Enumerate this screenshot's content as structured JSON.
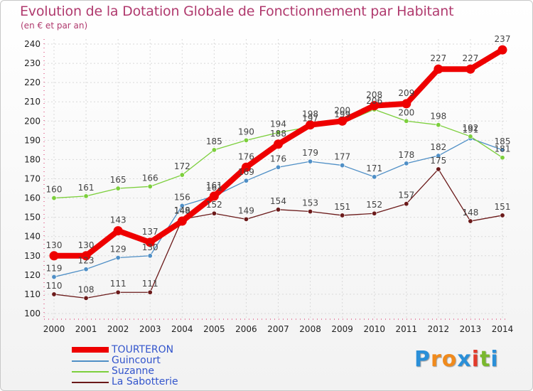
{
  "chart_data": {
    "type": "line",
    "title": "Evolution de la Dotation Globale de Fonctionnement par Habitant",
    "subtitle": "(en € et par an)",
    "xlabel": "",
    "ylabel": "",
    "ylim": [
      100,
      240
    ],
    "y_ticks": [
      100,
      110,
      120,
      130,
      140,
      150,
      160,
      170,
      180,
      190,
      200,
      210,
      220,
      230,
      240
    ],
    "x": [
      "2000",
      "2001",
      "2002",
      "2003",
      "2004",
      "2005",
      "2006",
      "2007",
      "2008",
      "2009",
      "2010",
      "2011",
      "2012",
      "2013",
      "2014"
    ],
    "grid": true,
    "series": [
      {
        "name": "La Sabotterie",
        "color": "#6b1a1a",
        "values": [
          110,
          108,
          111,
          111,
          149,
          152,
          149,
          154,
          153,
          151,
          152,
          157,
          175,
          148,
          151
        ]
      },
      {
        "name": "Guincourt",
        "color": "#4f8fc6",
        "values": [
          119,
          123,
          129,
          130,
          156,
          161,
          169,
          176,
          179,
          177,
          171,
          178,
          182,
          191,
          185
        ]
      },
      {
        "name": "Suzanne",
        "color": "#7ccf3c",
        "values": [
          160,
          161,
          165,
          166,
          172,
          185,
          190,
          194,
          197,
          199,
          206,
          200,
          198,
          192,
          181
        ]
      },
      {
        "name": "TOURTERON",
        "color": "#ee0000",
        "values": [
          130,
          130,
          143,
          137,
          148,
          161,
          176,
          188,
          198,
          200,
          208,
          209,
          227,
          227,
          237
        ]
      }
    ],
    "legend": [
      "TOURTERON",
      "Guincourt",
      "Suzanne",
      "La Sabotterie"
    ],
    "legend_position": "bottom-left"
  },
  "logo": {
    "letters": [
      "P",
      "r",
      "o",
      "x",
      "i",
      "t",
      "i"
    ],
    "colors": [
      "#2a8fd8",
      "#f08a1c",
      "#f08a1c",
      "#2a8fd8",
      "#e23a2a",
      "#7ab82e",
      "#2a8fd8"
    ]
  }
}
